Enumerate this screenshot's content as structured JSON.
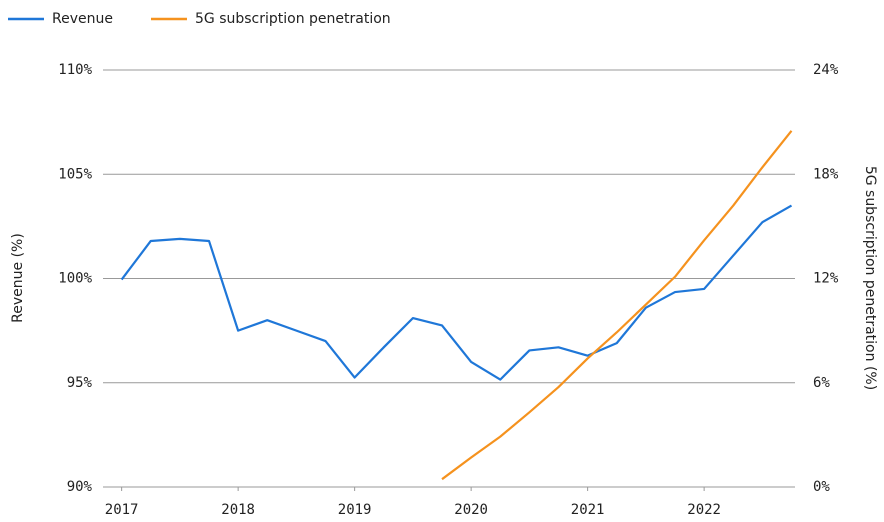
{
  "chart_data": {
    "type": "line",
    "x": [
      2017,
      2017.25,
      2017.5,
      2017.75,
      2018,
      2018.25,
      2018.5,
      2018.75,
      2019,
      2019.25,
      2019.5,
      2019.75,
      2020,
      2020.25,
      2020.5,
      2020.75,
      2021,
      2021.25,
      2021.5,
      2021.75,
      2022,
      2022.25,
      2022.5,
      2022.75
    ],
    "series": [
      {
        "name": "Revenue",
        "color": "#1f77d8",
        "axis": "y",
        "values": [
          99.95,
          101.8,
          101.9,
          101.8,
          97.5,
          98.0,
          97.5,
          97.0,
          95.25,
          96.7,
          98.1,
          97.75,
          96.0,
          95.15,
          96.55,
          96.7,
          96.3,
          96.9,
          98.6,
          99.35,
          99.5,
          101.1,
          102.7,
          103.5
        ]
      },
      {
        "name": "5G subscription penetration",
        "color": "#f5921e",
        "axis": "y2",
        "values": [
          null,
          null,
          null,
          null,
          null,
          null,
          null,
          null,
          null,
          null,
          null,
          0.45,
          1.7,
          2.9,
          4.3,
          5.75,
          7.4,
          8.9,
          10.5,
          12.1,
          14.2,
          16.2,
          18.4,
          20.5
        ]
      }
    ],
    "ylabel": "Revenue (%)",
    "y2label": "5G subscription penetration (%)",
    "xlim": [
      2016.84,
      2022.78
    ],
    "xticks": [
      2017,
      2018,
      2019,
      2020,
      2021,
      2022
    ],
    "ylim": [
      90,
      110
    ],
    "yticks": [
      {
        "value": 90,
        "label": "90%"
      },
      {
        "value": 95,
        "label": "95%"
      },
      {
        "value": 100,
        "label": "100%"
      },
      {
        "value": 105,
        "label": "105%"
      },
      {
        "value": 110,
        "label": "110%"
      }
    ],
    "y2lim": [
      0,
      24
    ],
    "y2ticks": [
      {
        "value": 0,
        "label": "0%"
      },
      {
        "value": 6,
        "label": "6%"
      },
      {
        "value": 12,
        "label": "12%"
      },
      {
        "value": 18,
        "label": "18%"
      },
      {
        "value": 24,
        "label": "24%"
      }
    ],
    "grid": true,
    "legend": "top-left"
  }
}
